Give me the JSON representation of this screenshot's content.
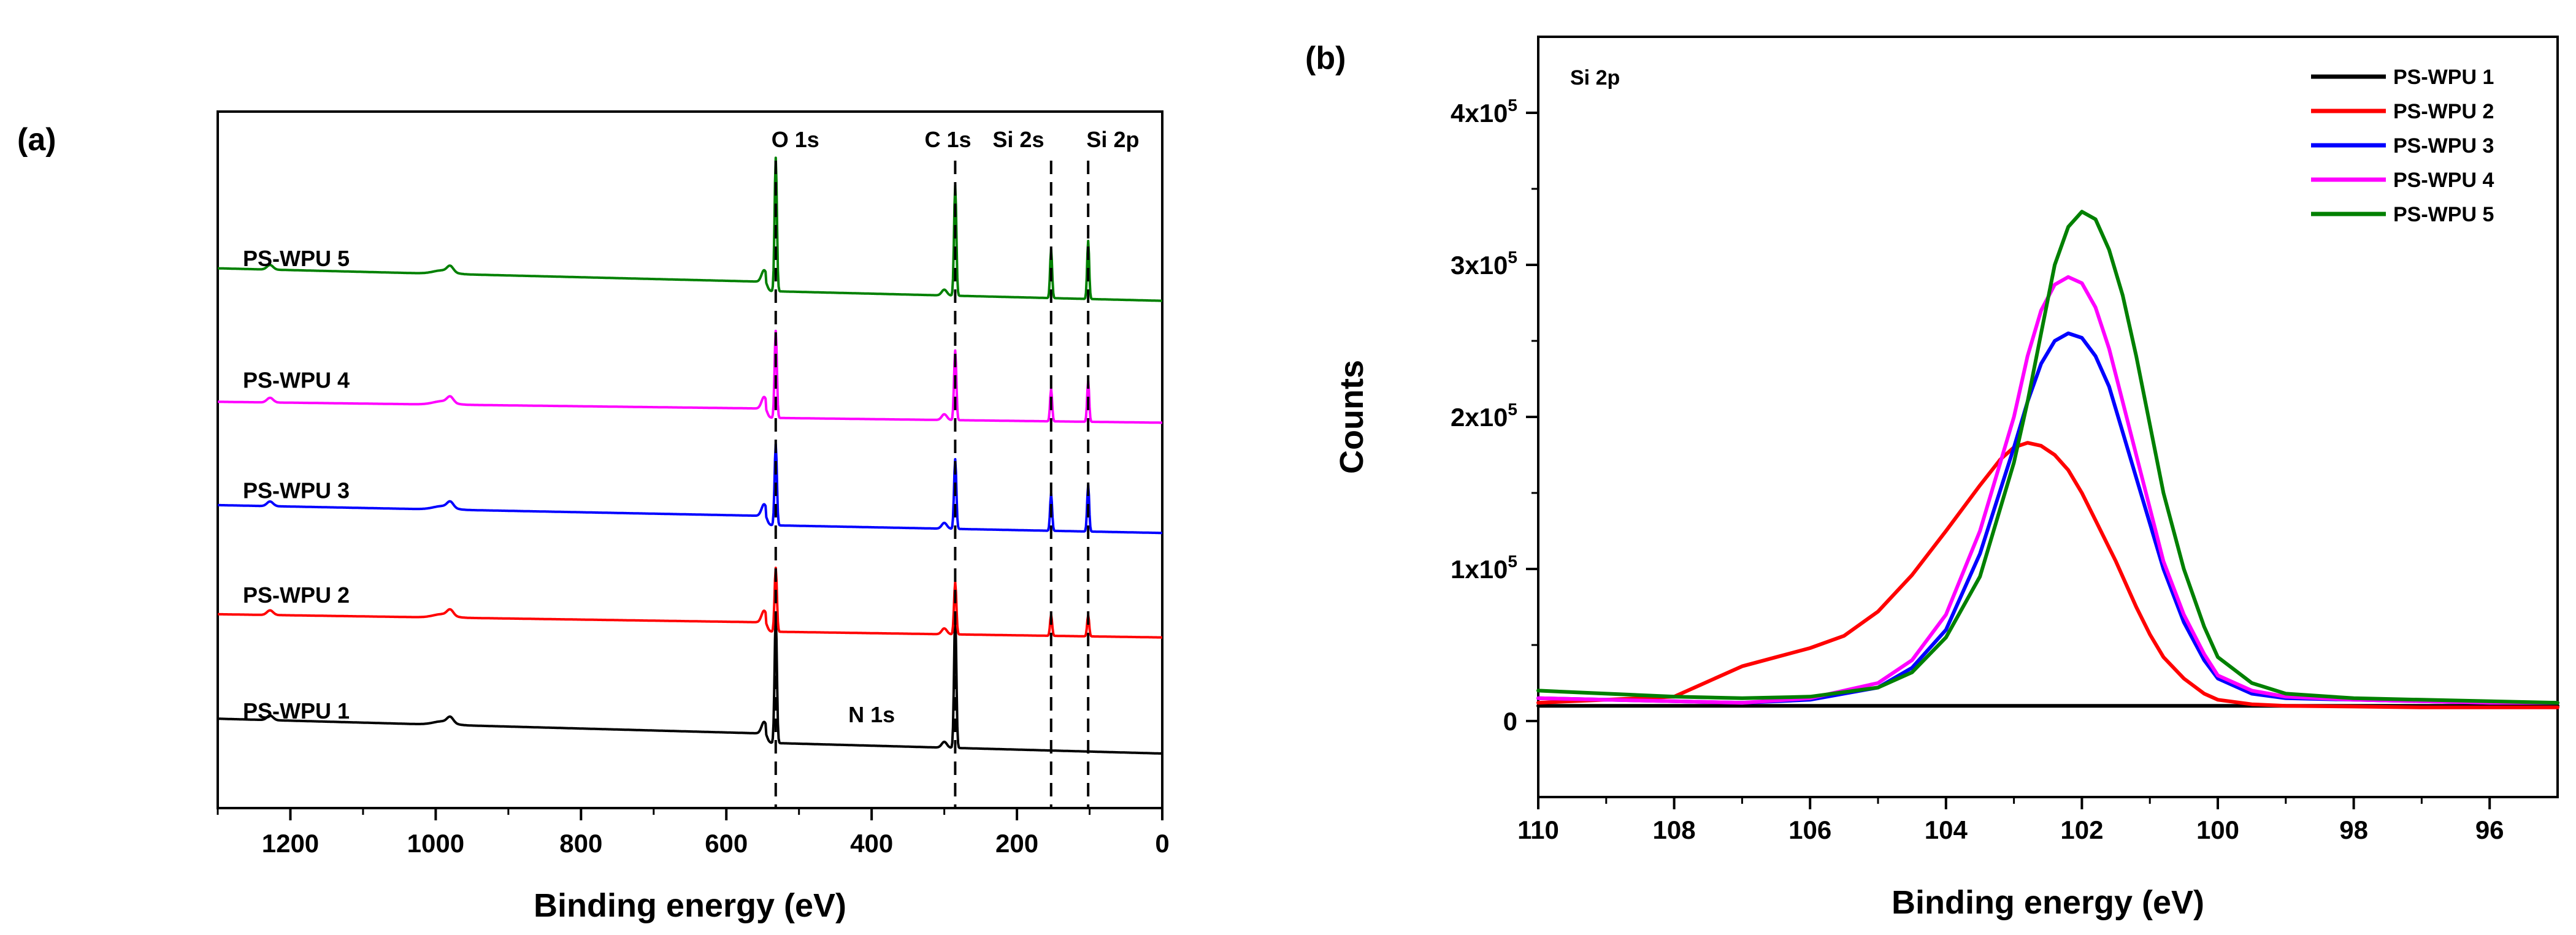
{
  "figure": {
    "panel_a_label": "(a)",
    "panel_b_label": "(b)"
  },
  "chart_data": [
    {
      "type": "line",
      "title": "",
      "xlabel": "Binding energy (eV)",
      "ylabel": "",
      "xlim": [
        1300,
        0
      ],
      "x_reversed": true,
      "ylim": [
        0,
        6
      ],
      "x_ticks": [
        1200,
        1000,
        800,
        600,
        400,
        200,
        0
      ],
      "x_tick_labels": [
        "1200",
        "1000",
        "800",
        "600",
        "400",
        "200",
        "0"
      ],
      "peak_lines": [
        {
          "label": "O 1s",
          "x": 532,
          "label_x": 505
        },
        {
          "label": "C 1s",
          "x": 285,
          "label_x": 295
        },
        {
          "label": "Si 2s",
          "x": 153,
          "label_x": 198
        },
        {
          "label": "Si 2p",
          "x": 102,
          "label_x": 68
        }
      ],
      "annotations": [
        {
          "text": "N 1s",
          "x": 400
        }
      ],
      "series": [
        {
          "name": "PS-WPU 1",
          "color": "#000000",
          "baseline": 0.55,
          "slope": 0.22,
          "o1s": 1.1,
          "c1s": 1.15,
          "si2s": 0.0,
          "si2p": 0.0
        },
        {
          "name": "PS-WPU 2",
          "color": "#ff0000",
          "baseline": 1.55,
          "slope": 0.12,
          "o1s": 0.55,
          "c1s": 0.45,
          "si2s": 0.18,
          "si2p": 0.18
        },
        {
          "name": "PS-WPU 3",
          "color": "#0000ff",
          "baseline": 2.45,
          "slope": 0.16,
          "o1s": 0.7,
          "c1s": 0.6,
          "si2s": 0.32,
          "si2p": 0.4
        },
        {
          "name": "PS-WPU 4",
          "color": "#ff00ff",
          "baseline": 3.4,
          "slope": 0.1,
          "o1s": 0.75,
          "c1s": 0.6,
          "si2s": 0.28,
          "si2p": 0.35
        },
        {
          "name": "PS-WPU 5",
          "color": "#008000",
          "baseline": 4.45,
          "slope": 0.2,
          "o1s": 1.15,
          "c1s": 0.95,
          "si2s": 0.42,
          "si2p": 0.5
        }
      ]
    },
    {
      "type": "line",
      "title": "",
      "inset_label": "Si 2p",
      "xlabel": "Binding energy (eV)",
      "ylabel": "Counts",
      "xlim": [
        110,
        95
      ],
      "x_reversed": true,
      "ylim": [
        -50000,
        450000
      ],
      "x_ticks": [
        110,
        108,
        106,
        104,
        102,
        100,
        98,
        96
      ],
      "x_tick_labels": [
        "110",
        "108",
        "106",
        "104",
        "102",
        "100",
        "98",
        "96"
      ],
      "y_ticks": [
        0,
        100000,
        200000,
        300000,
        400000
      ],
      "y_tick_labels": [
        {
          "mantissa": "0",
          "exp": ""
        },
        {
          "mantissa": "1x10",
          "exp": "5"
        },
        {
          "mantissa": "2x10",
          "exp": "5"
        },
        {
          "mantissa": "3x10",
          "exp": "5"
        },
        {
          "mantissa": "4x10",
          "exp": "5"
        }
      ],
      "legend_position": "top-right",
      "series": [
        {
          "name": "PS-WPU 1",
          "color": "#000000",
          "x": [
            110,
            95
          ],
          "y": [
            10000,
            10000
          ]
        },
        {
          "name": "PS-WPU 2",
          "color": "#ff0000",
          "x": [
            110,
            109,
            108,
            107.5,
            107,
            106.5,
            106,
            105.5,
            105,
            104.5,
            104,
            103.5,
            103.2,
            103,
            102.8,
            102.6,
            102.4,
            102.2,
            102,
            101.8,
            101.5,
            101.2,
            101,
            100.8,
            100.5,
            100.2,
            100,
            99.5,
            99,
            98,
            97,
            96,
            95
          ],
          "y": [
            12000,
            14000,
            16000,
            26000,
            36000,
            42000,
            48000,
            56000,
            72000,
            96000,
            125000,
            155000,
            172000,
            180000,
            183000,
            181000,
            175000,
            165000,
            150000,
            132000,
            105000,
            75000,
            57000,
            42000,
            28000,
            18000,
            14000,
            11000,
            10000,
            9500,
            9000,
            9000,
            9000
          ]
        },
        {
          "name": "PS-WPU 3",
          "color": "#0000ff",
          "x": [
            110,
            108,
            107,
            106,
            105,
            104.5,
            104,
            103.5,
            103,
            102.8,
            102.6,
            102.4,
            102.2,
            102,
            101.8,
            101.6,
            101.4,
            101.2,
            101,
            100.8,
            100.5,
            100.2,
            100,
            99.5,
            99,
            98,
            97,
            96,
            95
          ],
          "y": [
            15000,
            13000,
            12000,
            14000,
            22000,
            35000,
            60000,
            110000,
            180000,
            210000,
            235000,
            250000,
            255000,
            252000,
            240000,
            220000,
            190000,
            160000,
            130000,
            100000,
            65000,
            40000,
            28000,
            18000,
            15000,
            14000,
            13000,
            12000,
            12000
          ]
        },
        {
          "name": "PS-WPU 4",
          "color": "#ff00ff",
          "x": [
            110,
            108,
            107,
            106,
            105,
            104.5,
            104,
            103.5,
            103,
            102.8,
            102.6,
            102.4,
            102.2,
            102,
            101.8,
            101.6,
            101.4,
            101.2,
            101,
            100.8,
            100.5,
            100.2,
            100,
            99.5,
            99,
            98,
            97,
            96,
            95
          ],
          "y": [
            15000,
            13000,
            12000,
            15000,
            25000,
            40000,
            70000,
            125000,
            200000,
            240000,
            270000,
            287000,
            292000,
            288000,
            272000,
            245000,
            210000,
            175000,
            140000,
            105000,
            70000,
            44000,
            30000,
            20000,
            16000,
            14000,
            13000,
            12000,
            12000
          ]
        },
        {
          "name": "PS-WPU 5",
          "color": "#008000",
          "x": [
            110,
            108,
            107,
            106,
            105,
            104.5,
            104,
            103.5,
            103,
            102.8,
            102.6,
            102.4,
            102.2,
            102,
            101.8,
            101.6,
            101.4,
            101.2,
            101,
            100.8,
            100.5,
            100.2,
            100,
            99.5,
            99,
            98,
            97,
            96,
            95
          ],
          "y": [
            20000,
            16000,
            15000,
            16000,
            22000,
            32000,
            55000,
            95000,
            170000,
            210000,
            255000,
            300000,
            325000,
            335000,
            330000,
            310000,
            280000,
            240000,
            195000,
            150000,
            100000,
            62000,
            42000,
            25000,
            18000,
            15000,
            14000,
            13000,
            12000
          ]
        }
      ]
    }
  ]
}
